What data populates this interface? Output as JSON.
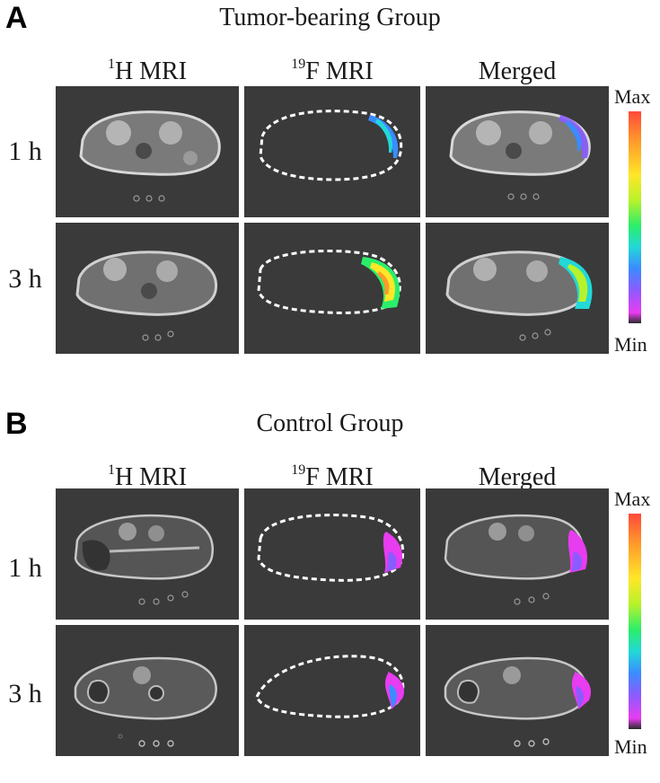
{
  "panels": [
    {
      "letter": "A",
      "title": "Tumor-bearing Group",
      "columns": [
        {
          "sup": "1",
          "label": "H MRI"
        },
        {
          "sup": "19",
          "label": "F MRI"
        },
        {
          "sup": "",
          "label": "Merged"
        }
      ],
      "rows": [
        "1 h",
        "3 h"
      ],
      "colorbar": {
        "max": "Max",
        "min": "Min"
      }
    },
    {
      "letter": "B",
      "title": "Control Group",
      "columns": [
        {
          "sup": "1",
          "label": "H MRI"
        },
        {
          "sup": "19",
          "label": "F MRI"
        },
        {
          "sup": "",
          "label": "Merged"
        }
      ],
      "rows": [
        "1 h",
        "3 h"
      ],
      "colorbar": {
        "max": "Max",
        "min": "Min"
      }
    }
  ],
  "colors": {
    "tile_bg": "#3a3a3a",
    "outline": "#ffffff",
    "colormap": [
      "#ff4a3a",
      "#ff9a2a",
      "#ffe628",
      "#b8f22a",
      "#2aee6a",
      "#22d8d8",
      "#3a8cff",
      "#8a5cff",
      "#e83cf0",
      "#2a2a2a"
    ]
  }
}
